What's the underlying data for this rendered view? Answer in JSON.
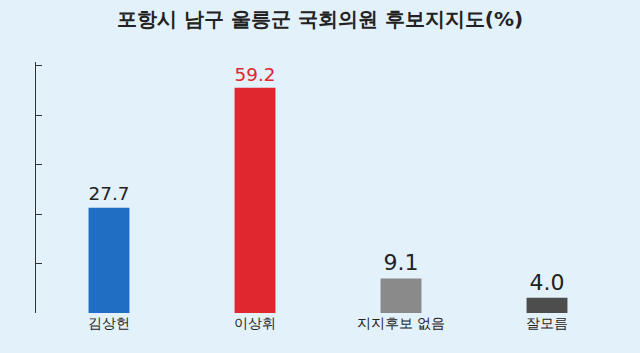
{
  "chart_data": {
    "type": "bar",
    "title": "포항시 남구 울릉군 국회의원 후보지지도(%)",
    "categories": [
      "김상헌",
      "이상휘",
      "지지후보 없음",
      "잘모름"
    ],
    "values": [
      27.7,
      59.2,
      9.1,
      4.0
    ],
    "value_labels": [
      "27.7",
      "59.2",
      "9.1",
      "4.0"
    ],
    "colors": [
      "#1f6ec4",
      "#e0262f",
      "#8a8a8a",
      "#4d4d4d"
    ],
    "ylim": [
      0,
      66
    ],
    "yticks": [
      0,
      13,
      26,
      39,
      52,
      65
    ],
    "grid": false,
    "data_labels": true,
    "tick_labels": "x"
  }
}
